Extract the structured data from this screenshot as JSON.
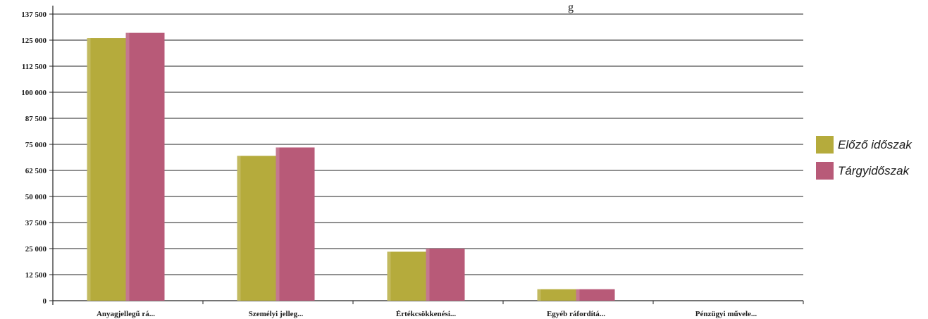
{
  "chart_data": {
    "type": "bar",
    "title": "g",
    "categories": [
      "Anyagjellegű rá...",
      "Személyi jelleg...",
      "Értékcsökkenési...",
      "Egyéb ráfordítá...",
      "Pénzügyi művele..."
    ],
    "series": [
      {
        "name": "Előző időszak",
        "color": "#b5ab3c",
        "values": [
          126000,
          69500,
          23500,
          5500,
          0
        ]
      },
      {
        "name": "Tárgyidőszak",
        "color": "#b85a78",
        "values": [
          128500,
          73500,
          25000,
          5500,
          0
        ]
      }
    ],
    "yticks": [
      "0",
      "12 500",
      "25 000",
      "37 500",
      "50 000",
      "62 500",
      "75 000",
      "87 500",
      "100 000",
      "112 500",
      "125 000",
      "137 500"
    ],
    "ylim": [
      0,
      137500
    ],
    "grid": true,
    "legend_position": "right"
  }
}
